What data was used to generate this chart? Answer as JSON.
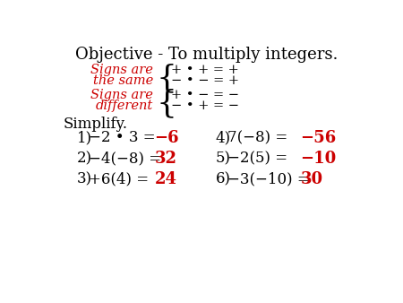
{
  "background_color": "#ffffff",
  "title": "Objective - To multiply integers.",
  "red_color": "#cc0000",
  "black_color": "#000000",
  "problems_left": [
    {
      "number": "1)",
      "expr": "−2 • 3 = ",
      "answer": "−6"
    },
    {
      "number": "2)",
      "expr": "−4(−8) = ",
      "answer": "32"
    },
    {
      "number": "3)",
      "expr": "+6(4) = ",
      "answer": "24"
    }
  ],
  "problems_right": [
    {
      "number": "4)",
      "expr": "7(−8) = ",
      "answer": "−56"
    },
    {
      "number": "5)",
      "expr": "−2(5) = ",
      "answer": "−10"
    },
    {
      "number": "6)",
      "expr": "−3(−10) = ",
      "answer": "30"
    }
  ]
}
